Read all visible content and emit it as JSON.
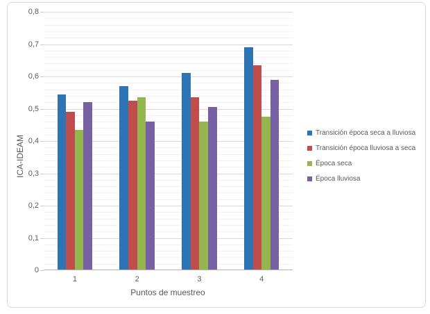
{
  "chart_data": {
    "type": "bar",
    "categories": [
      "1",
      "2",
      "3",
      "4"
    ],
    "series": [
      {
        "name": "Transición época seca a lluviosa",
        "color": "#2e74b5",
        "values": [
          0.545,
          0.57,
          0.61,
          0.69
        ]
      },
      {
        "name": "Transición época lluviosa a seca",
        "color": "#c04d4c",
        "values": [
          0.49,
          0.525,
          0.535,
          0.635
        ]
      },
      {
        "name": "Época seca",
        "color": "#94b64f",
        "values": [
          0.435,
          0.535,
          0.46,
          0.475
        ]
      },
      {
        "name": "Época lluviosa",
        "color": "#7761a2",
        "values": [
          0.52,
          0.46,
          0.505,
          0.59
        ]
      }
    ],
    "title": "",
    "xlabel": "Puntos de muestreo",
    "ylabel": "ICA-IDEAM",
    "ylim": [
      0,
      0.8
    ],
    "y_major_unit": 0.1,
    "y_minor_unit": 0.02,
    "y_tick_labels": [
      "0",
      "0,1",
      "0,2",
      "0,3",
      "0,4",
      "0,5",
      "0,6",
      "0,7",
      "0,8"
    ],
    "grid": "major+minor horizontal",
    "legend_position": "right",
    "colors": {
      "axis_text": "#595959",
      "major_gridline": "#d9d9d9",
      "minor_gridline": "#f1f1f1",
      "axis_line": "#b3b3b3",
      "frame_border": "#d8d8d8",
      "background": "#ffffff"
    }
  }
}
